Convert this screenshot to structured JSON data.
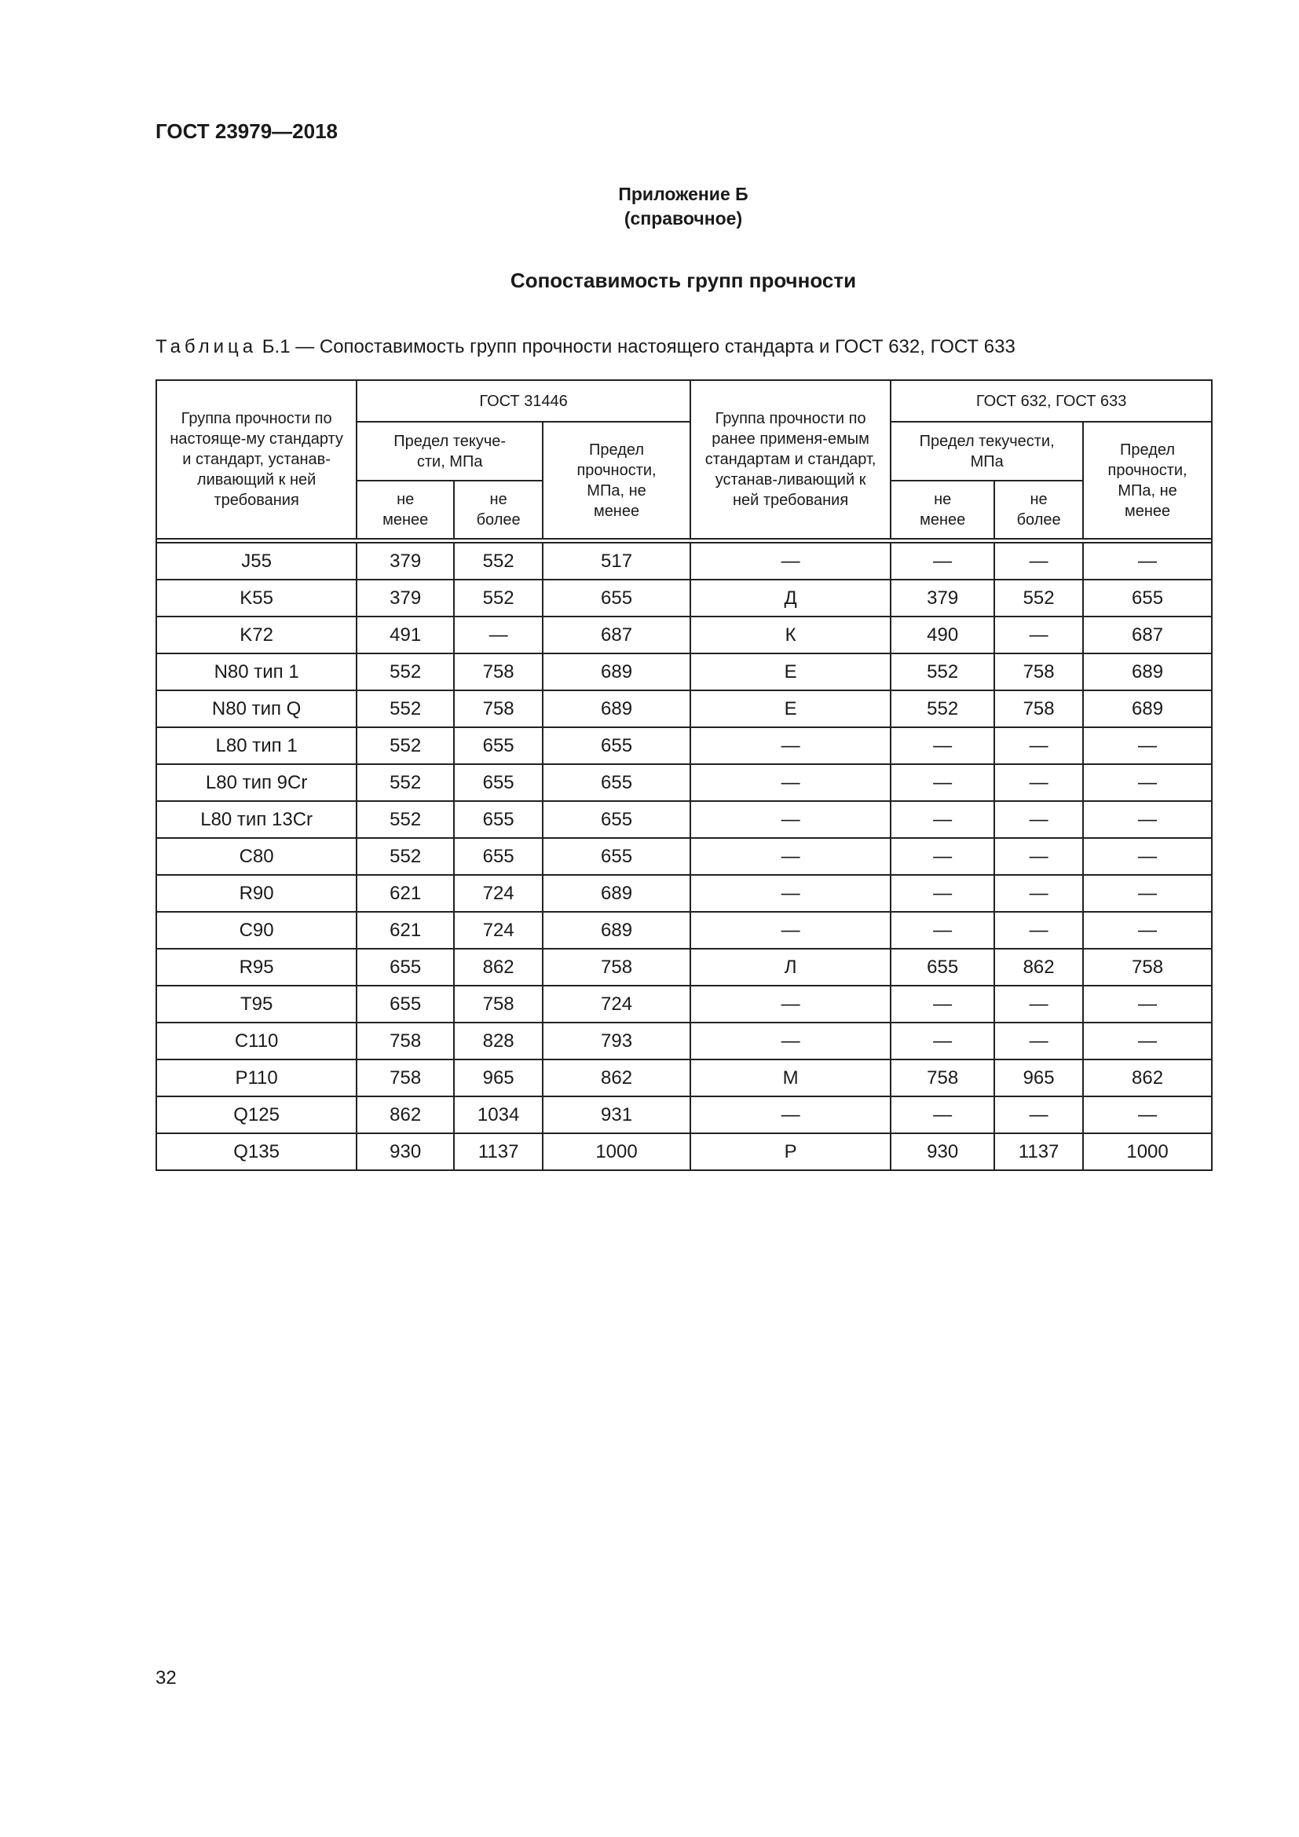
{
  "header": {
    "doc_id": "ГОСТ 23979—2018"
  },
  "annex": {
    "title": "Приложение Б",
    "type": "(справочное)"
  },
  "section_title": "Сопоставимость групп прочности",
  "table_caption": {
    "prefix": "Таблица",
    "rest": " Б.1 — Сопоставимость групп прочности настоящего стандарта и ГОСТ 632, ГОСТ 633"
  },
  "table": {
    "headers": {
      "group_current": "Группа прочности по настояще-му стандарту и стандарт, устанав-ливающий к ней требования",
      "gost31446": "ГОСТ 31446",
      "yield": "Предел текуче-сти, МПа",
      "tensile": "Предел прочности, МПа, не менее",
      "group_prev": "Группа прочности по ранее применя-емым стандартам и стандарт, устанав-ливающий к ней требования",
      "gost632": "ГОСТ 632, ГОСТ 633",
      "yield2": "Предел текучести, МПа",
      "tensile2": "Предел прочности, МПа, не менее",
      "min": "не менее",
      "max": "не более"
    },
    "rows": [
      [
        "J55",
        "379",
        "552",
        "517",
        "—",
        "—",
        "—",
        "—"
      ],
      [
        "K55",
        "379",
        "552",
        "655",
        "Д",
        "379",
        "552",
        "655"
      ],
      [
        "K72",
        "491",
        "—",
        "687",
        "К",
        "490",
        "—",
        "687"
      ],
      [
        "N80 тип 1",
        "552",
        "758",
        "689",
        "Е",
        "552",
        "758",
        "689"
      ],
      [
        "N80 тип Q",
        "552",
        "758",
        "689",
        "Е",
        "552",
        "758",
        "689"
      ],
      [
        "L80 тип 1",
        "552",
        "655",
        "655",
        "—",
        "—",
        "—",
        "—"
      ],
      [
        "L80 тип 9Cr",
        "552",
        "655",
        "655",
        "—",
        "—",
        "—",
        "—"
      ],
      [
        "L80 тип 13Cr",
        "552",
        "655",
        "655",
        "—",
        "—",
        "—",
        "—"
      ],
      [
        "C80",
        "552",
        "655",
        "655",
        "—",
        "—",
        "—",
        "—"
      ],
      [
        "R90",
        "621",
        "724",
        "689",
        "—",
        "—",
        "—",
        "—"
      ],
      [
        "C90",
        "621",
        "724",
        "689",
        "—",
        "—",
        "—",
        "—"
      ],
      [
        "R95",
        "655",
        "862",
        "758",
        "Л",
        "655",
        "862",
        "758"
      ],
      [
        "T95",
        "655",
        "758",
        "724",
        "—",
        "—",
        "—",
        "—"
      ],
      [
        "C110",
        "758",
        "828",
        "793",
        "—",
        "—",
        "—",
        "—"
      ],
      [
        "P110",
        "758",
        "965",
        "862",
        "М",
        "758",
        "965",
        "862"
      ],
      [
        "Q125",
        "862",
        "1034",
        "931",
        "—",
        "—",
        "—",
        "—"
      ],
      [
        "Q135",
        "930",
        "1137",
        "1000",
        "Р",
        "930",
        "1137",
        "1000"
      ]
    ]
  },
  "page_number": "32"
}
